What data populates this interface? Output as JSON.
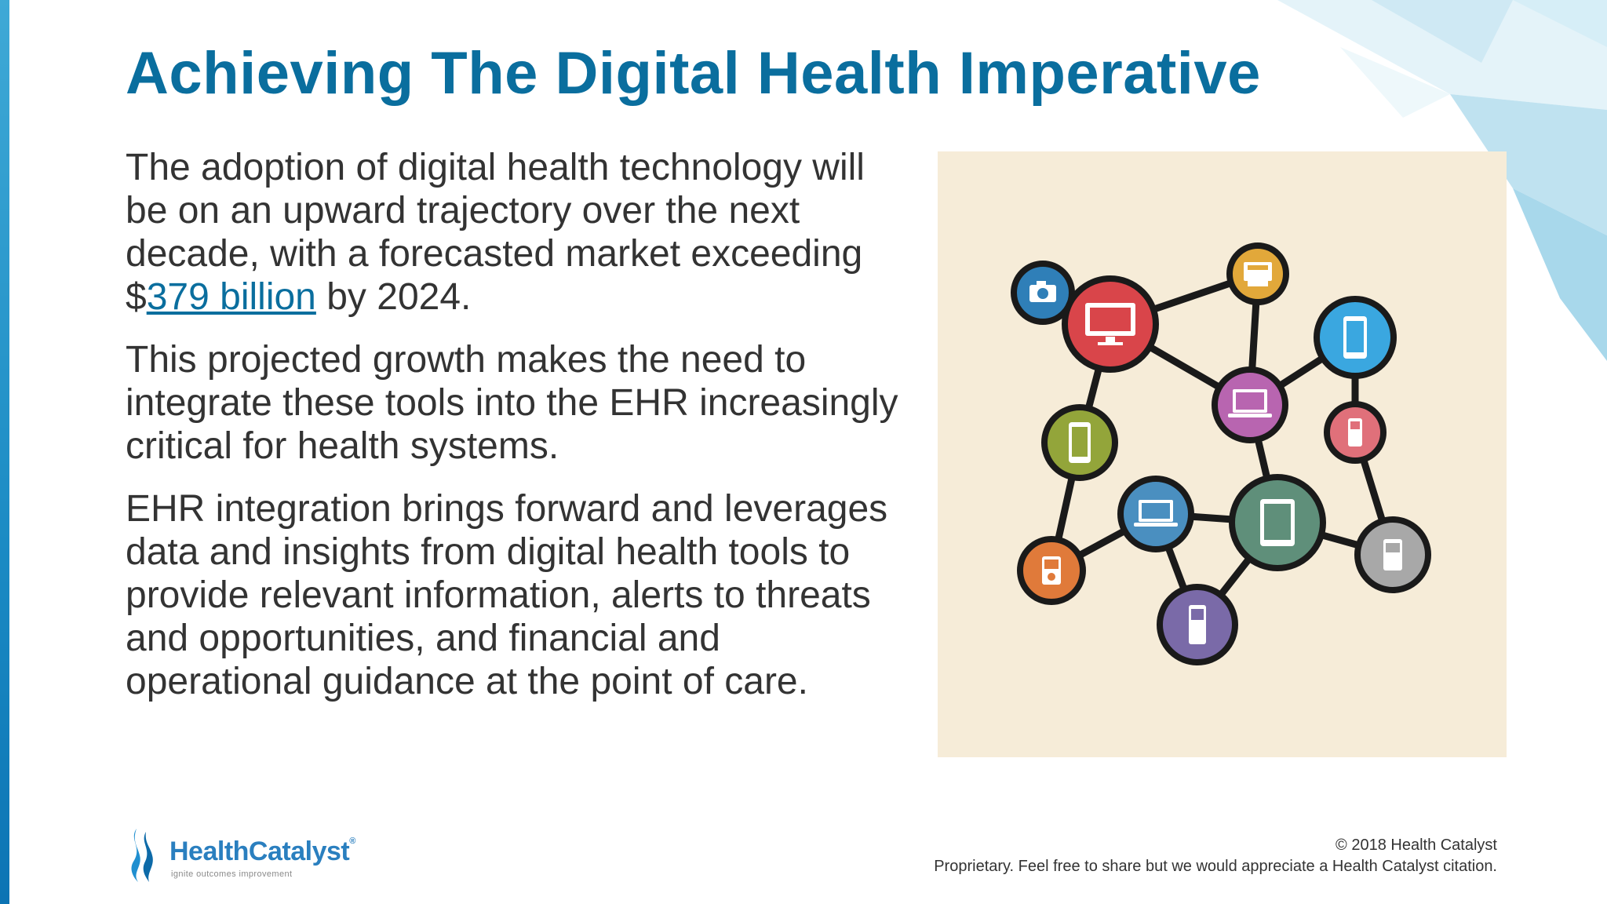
{
  "slide": {
    "title": "Achieving The Digital Health Imperative",
    "paragraph1_before": "The adoption of digital health technology will be on an upward trajectory over the next decade, with a forecasted market exceeding $",
    "paragraph1_link": "379 billion",
    "paragraph1_after": " by 2024.",
    "paragraph2": "This projected growth makes the need to integrate these tools into the EHR increasingly critical for health systems.",
    "paragraph3": "EHR integration brings forward and leverages data and insights from digital health tools to provide relevant information, alerts to threats and opportunities, and financial and operational guidance at the point of care."
  },
  "illustration": {
    "background": "#f6ecd8",
    "nodes": [
      {
        "icon": "camera-icon",
        "color": "#2f7fb8"
      },
      {
        "icon": "monitor-icon",
        "color": "#d9454a"
      },
      {
        "icon": "printer-icon",
        "color": "#e2a83a"
      },
      {
        "icon": "smartphone-icon",
        "color": "#3aa7e0"
      },
      {
        "icon": "laptop-icon",
        "color": "#b865b0"
      },
      {
        "icon": "feature-phone-icon",
        "color": "#e0707a"
      },
      {
        "icon": "smartphone-icon",
        "color": "#93a53a"
      },
      {
        "icon": "laptop-icon",
        "color": "#4a8fc0"
      },
      {
        "icon": "tablet-icon",
        "color": "#5f8f7a"
      },
      {
        "icon": "feature-phone-icon",
        "color": "#a8a8a8"
      },
      {
        "icon": "music-player-icon",
        "color": "#e07a3a"
      },
      {
        "icon": "feature-phone-icon",
        "color": "#7a6aa8"
      }
    ]
  },
  "logo": {
    "name_part1": "Health",
    "name_part2": "Catalyst",
    "tagline": "ignite outcomes improvement",
    "color": "#2a7fbf"
  },
  "footer": {
    "copyright": "© 2018 Health Catalyst",
    "note": "Proprietary. Feel free to share but we would appreciate a Health Catalyst citation."
  }
}
